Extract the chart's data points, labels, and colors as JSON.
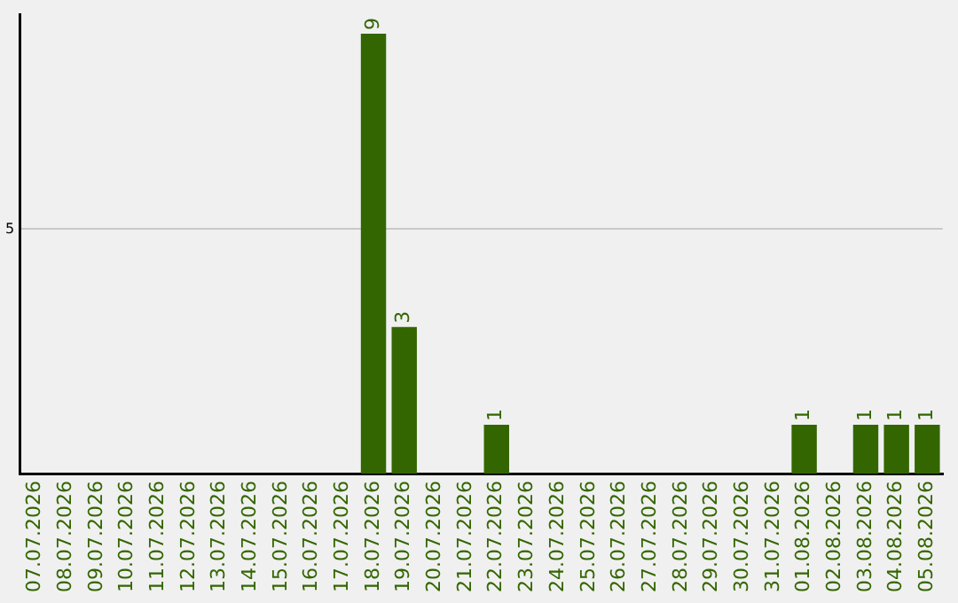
{
  "chart_data": {
    "type": "bar",
    "categories": [
      "07.07.2026",
      "08.07.2026",
      "09.07.2026",
      "10.07.2026",
      "11.07.2026",
      "12.07.2026",
      "13.07.2026",
      "14.07.2026",
      "15.07.2026",
      "16.07.2026",
      "17.07.2026",
      "18.07.2026",
      "19.07.2026",
      "20.07.2026",
      "21.07.2026",
      "22.07.2026",
      "23.07.2026",
      "24.07.2026",
      "25.07.2026",
      "26.07.2026",
      "27.07.2026",
      "28.07.2026",
      "29.07.2026",
      "30.07.2026",
      "31.07.2026",
      "01.08.2026",
      "02.08.2026",
      "03.08.2026",
      "04.08.2026",
      "05.08.2026"
    ],
    "values": [
      0,
      0,
      0,
      0,
      0,
      0,
      0,
      0,
      0,
      0,
      0,
      9,
      3,
      0,
      0,
      1,
      0,
      0,
      0,
      0,
      0,
      0,
      0,
      0,
      0,
      1,
      0,
      1,
      1,
      1
    ],
    "value_labels": [
      null,
      null,
      null,
      null,
      null,
      null,
      null,
      null,
      null,
      null,
      null,
      "9",
      "3",
      null,
      null,
      "1",
      null,
      null,
      null,
      null,
      null,
      null,
      null,
      null,
      null,
      "1",
      null,
      "1",
      "1",
      "1"
    ],
    "color": "#336600",
    "ylim": [
      0,
      9.4
    ],
    "yticks": [
      5
    ],
    "grid": "y",
    "legend": false
  }
}
